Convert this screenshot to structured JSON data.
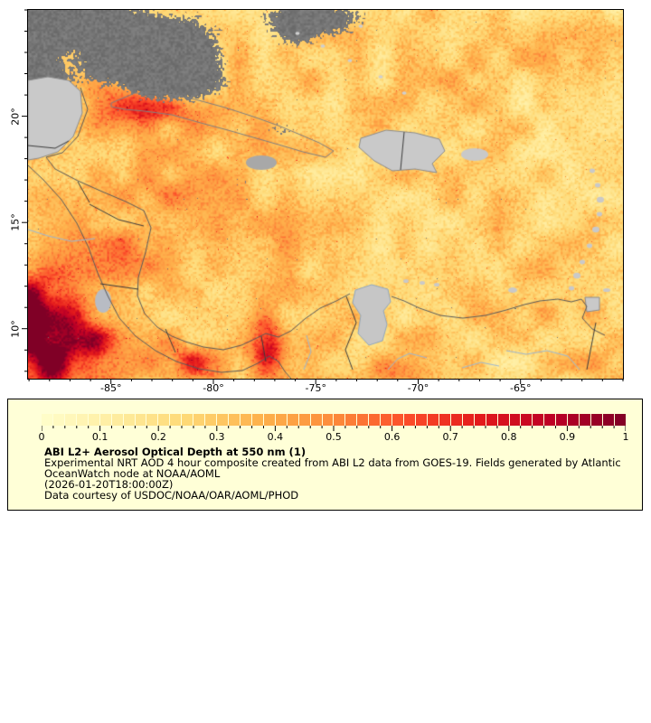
{
  "map": {
    "x_tick_labels": [
      "-85°",
      "-80°",
      "-75°",
      "-70°",
      "-65°"
    ],
    "x_tick_lons": [
      -85,
      -80,
      -75,
      -70,
      -65
    ],
    "y_tick_labels": [
      "20°",
      "15°",
      "10°"
    ],
    "y_tick_lats": [
      20,
      15,
      10
    ],
    "extent": {
      "lon_min": -89.05,
      "lon_max": -60.0,
      "lat_min": 7.65,
      "lat_max": 25.0
    },
    "colors": {
      "land": "#c9c9c9",
      "land_dim": "#a8a8a8",
      "cloud": "#747474",
      "coastline": "#5a5a5a",
      "island_outline": "#8d8d8d",
      "border": "#3c3c3c",
      "river": "#9db8d2",
      "lake": "#c6c6c6",
      "frame": "#000000"
    },
    "colormap": [
      "#ffffcc",
      "#ffeda0",
      "#fed976",
      "#feb24c",
      "#fd8d3c",
      "#fc4e2a",
      "#e31a1c",
      "#bd0026",
      "#800026"
    ]
  },
  "legend": {
    "background": "#ffffd7",
    "tick_labels": [
      "0",
      "0.1",
      "0.2",
      "0.3",
      "0.4",
      "0.5",
      "0.6",
      "0.7",
      "0.8",
      "0.9",
      "1"
    ],
    "n_cells": 50,
    "title": "ABI L2+ Aerosol Optical Depth at 550 nm (1)",
    "description_line1": "Experimental NRT AOD 4 hour composite created from ABI L2 data from GOES-19. Fields generated by Atlantic",
    "description_line2": "OceanWatch node at NOAA/AOML",
    "timestamp": "(2026-01-20T18:00:00Z)",
    "courtesy": "Data courtesy of USDOC/NOAA/OAR/AOML/PHOD"
  }
}
